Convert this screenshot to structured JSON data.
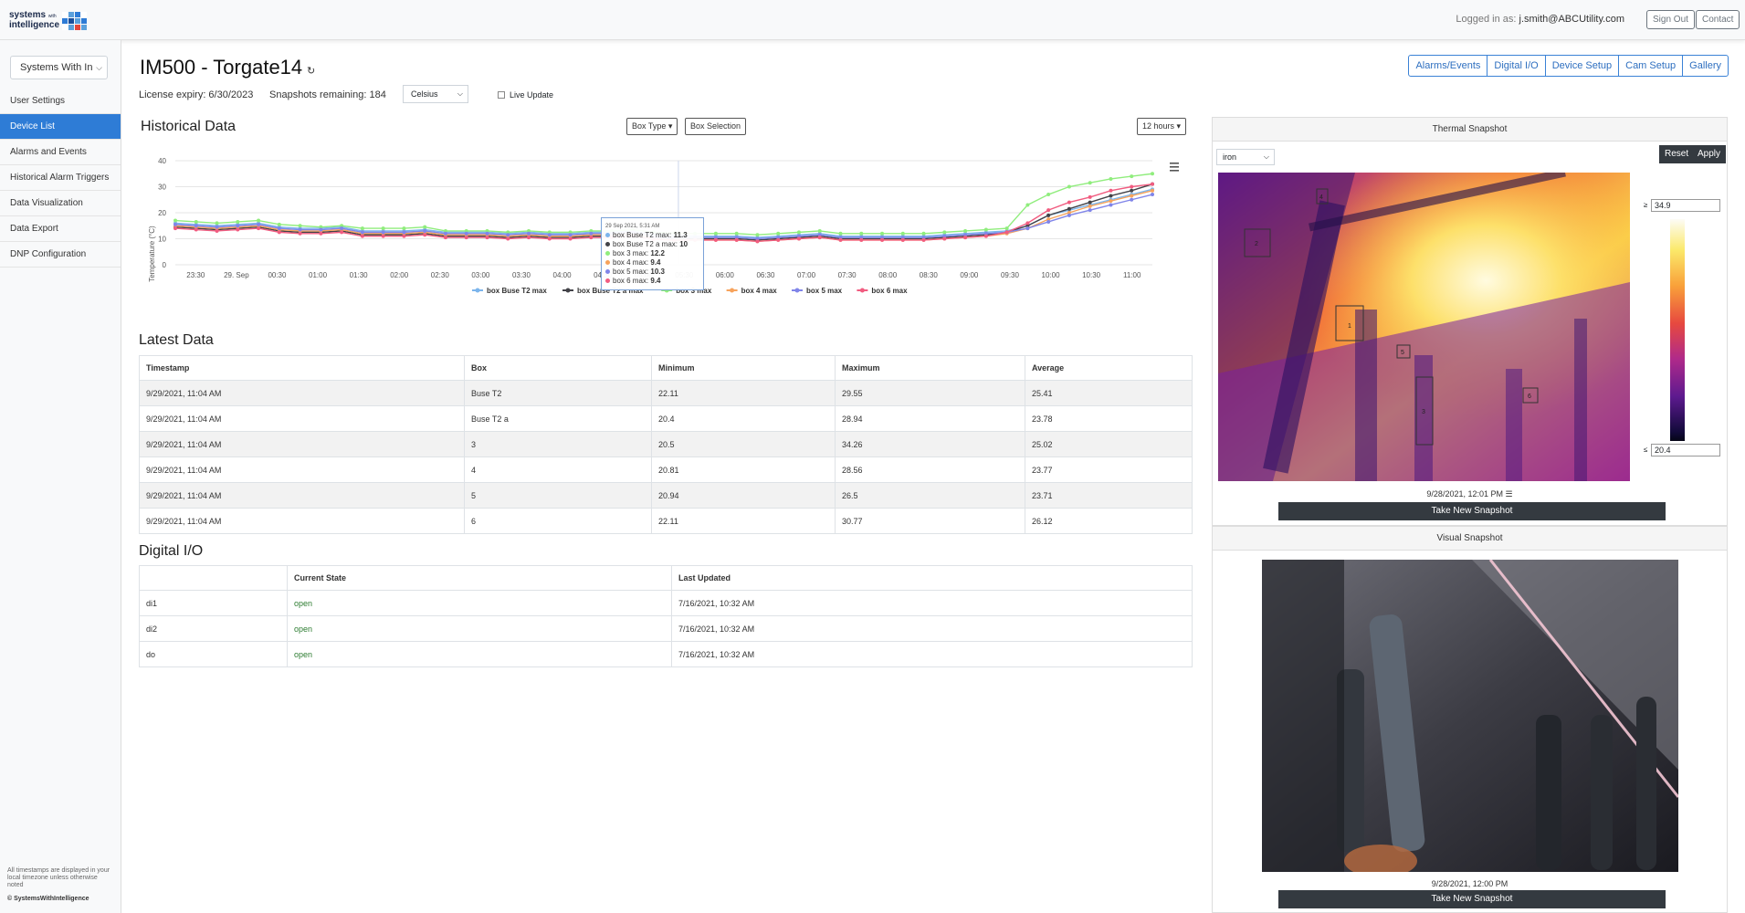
{
  "header": {
    "logo_line1": "systems",
    "logo_small": "with",
    "logo_line2": "intelligence",
    "logged_in_label": "Logged in as:",
    "user": "j.smith@ABCUtility.com",
    "sign_out": "Sign Out",
    "contact": "Contact"
  },
  "sidebar": {
    "selector_value": "Systems With In",
    "items": [
      {
        "label": "User Settings"
      },
      {
        "label": "Device List"
      },
      {
        "label": "Alarms and Events"
      },
      {
        "label": "Historical Alarm Triggers"
      },
      {
        "label": "Data Visualization"
      },
      {
        "label": "Data Export"
      },
      {
        "label": "DNP Configuration"
      }
    ],
    "footnote": "All timestamps are displayed in your local timezone unless otherwise noted",
    "copyright": "© SystemsWithIntelligence"
  },
  "page": {
    "title": "IM500 - Torgate14",
    "license": "License expiry: 6/30/2023",
    "snapshots": "Snapshots remaining: 184",
    "unit": "Celsius",
    "live_update": "Live Update",
    "tabs": [
      "Alarms/Events",
      "Digital I/O",
      "Device Setup",
      "Cam Setup",
      "Gallery"
    ]
  },
  "historical": {
    "title": "Historical Data",
    "box_type": "Box Type",
    "box_selection": "Box Selection",
    "range": "12 hours",
    "tooltip": {
      "time": "29 Sep 2021, 5:31 AM",
      "rows": [
        {
          "label": "box Buse T2 max:",
          "value": "11.3"
        },
        {
          "label": "box Buse T2 a max:",
          "value": "10"
        },
        {
          "label": "box 3 max:",
          "value": "12.2"
        },
        {
          "label": "box 4 max:",
          "value": "9.4"
        },
        {
          "label": "box 5 max:",
          "value": "10.3"
        },
        {
          "label": "box 6 max:",
          "value": "9.4"
        }
      ]
    }
  },
  "chart_data": {
    "type": "line",
    "ylabel": "Temperature (°C)",
    "ylim": [
      0,
      40
    ],
    "yticks": [
      0,
      10,
      20,
      30,
      40
    ],
    "xticks": [
      "23:30",
      "29. Sep",
      "00:30",
      "01:00",
      "01:30",
      "02:00",
      "02:30",
      "03:00",
      "03:30",
      "04:00",
      "04:30",
      "05:00",
      "05:30",
      "06:00",
      "06:30",
      "07:00",
      "07:30",
      "08:00",
      "08:30",
      "09:00",
      "09:30",
      "10:00",
      "10:30",
      "11:00"
    ],
    "x_hours": [
      0,
      0.5,
      1,
      1.5,
      2,
      2.5,
      3,
      3.5,
      4,
      4.5,
      5,
      5.5,
      6,
      6.5,
      7,
      7.5,
      8,
      8.5,
      9,
      9.5,
      10,
      10.5,
      11,
      11.5,
      12,
      12.5,
      13,
      13.5,
      14,
      14.5,
      15,
      15.5,
      16,
      16.5,
      17,
      17.5,
      18,
      18.5,
      19,
      19.5,
      20,
      20.5,
      21,
      21.5,
      22,
      22.5,
      23,
      23.5
    ],
    "grid": true,
    "legend": "bottom",
    "series": [
      {
        "name": "box Buse T2 max",
        "color": "#7cb5ec",
        "values": [
          16,
          15.5,
          15,
          15.5,
          16,
          14.5,
          14,
          14,
          14.5,
          13,
          13,
          13,
          13.5,
          12.5,
          12.5,
          12.5,
          12,
          12.5,
          12,
          12,
          12.5,
          12.5,
          13,
          11.5,
          11.3,
          11,
          11,
          11,
          10.5,
          11,
          11.5,
          12,
          11,
          11,
          11,
          11,
          11,
          11.5,
          12,
          12.5,
          13,
          15,
          19,
          21,
          23,
          25,
          27,
          29
        ]
      },
      {
        "name": "box Buse T2 a max",
        "color": "#434348",
        "values": [
          14.5,
          14,
          13.5,
          14,
          14.5,
          13,
          12.5,
          12.5,
          13,
          11.5,
          11.5,
          11.5,
          12,
          11,
          11,
          11,
          10.5,
          11,
          10.5,
          10.5,
          11,
          11,
          11.5,
          10.2,
          10,
          10,
          10,
          10,
          9.5,
          10,
          10.5,
          11,
          10,
          10,
          10,
          10,
          10,
          10.5,
          11,
          11.5,
          12.5,
          15,
          19,
          21.5,
          24,
          26.5,
          28.5,
          31
        ]
      },
      {
        "name": "box 3 max",
        "color": "#90ed7d",
        "values": [
          17,
          16.5,
          16,
          16.5,
          17,
          15.5,
          15,
          14.5,
          15,
          14,
          14,
          14,
          14.5,
          13,
          13,
          13,
          12.5,
          13,
          12.5,
          12.5,
          13,
          13,
          13.5,
          12.5,
          12.2,
          12,
          12,
          12,
          11.5,
          12,
          12.5,
          13,
          12,
          12,
          12,
          12,
          12,
          12.5,
          13,
          13.5,
          14,
          23,
          27,
          30,
          31.5,
          33,
          34,
          35
        ]
      },
      {
        "name": "box 4 max",
        "color": "#f7a35c",
        "values": [
          15,
          14.5,
          14,
          14.5,
          15,
          13.5,
          13,
          13,
          13.5,
          12,
          12,
          12,
          12.5,
          11.5,
          11.5,
          11.5,
          11,
          11.5,
          11,
          11,
          11.5,
          11.5,
          12,
          10,
          9.4,
          9.5,
          9.5,
          9.5,
          9,
          9.5,
          10,
          10.5,
          9.5,
          9.5,
          9.5,
          9.5,
          9.5,
          10,
          10.5,
          11,
          12,
          14,
          17.5,
          20,
          22.5,
          24.5,
          26.5,
          28.5
        ]
      },
      {
        "name": "box 5 max",
        "color": "#8085e9",
        "values": [
          15.5,
          15,
          14.5,
          15,
          15.5,
          14,
          13.5,
          13.5,
          14,
          12.5,
          12.5,
          12.5,
          13,
          12,
          12,
          12,
          11.5,
          12,
          11.5,
          11.5,
          12,
          12,
          12.5,
          10.8,
          10.3,
          10.5,
          10.5,
          10.5,
          10,
          10.5,
          11,
          11.5,
          10.5,
          10.5,
          10.5,
          10.5,
          10.5,
          11,
          11.5,
          12,
          12.5,
          14,
          16.5,
          19,
          21,
          23,
          25,
          27
        ]
      },
      {
        "name": "box 6 max",
        "color": "#f15c80",
        "values": [
          14,
          13.5,
          13,
          13.5,
          14,
          12.5,
          12,
          12,
          12.5,
          11,
          11,
          11,
          11.5,
          10.5,
          10.5,
          10.5,
          10,
          10.5,
          10,
          10,
          10.5,
          10.5,
          11,
          9.8,
          9.4,
          9.5,
          9.5,
          9.5,
          9,
          9.5,
          10,
          10.5,
          9.5,
          9.5,
          9.5,
          9.5,
          9.5,
          10,
          10.5,
          11,
          12.5,
          16,
          21,
          24,
          26,
          28.5,
          30,
          31
        ]
      }
    ]
  },
  "latest": {
    "title": "Latest Data",
    "columns": [
      "Timestamp",
      "Box",
      "Minimum",
      "Maximum",
      "Average"
    ],
    "rows": [
      [
        "9/29/2021, 11:04 AM",
        "Buse T2",
        "22.11",
        "29.55",
        "25.41"
      ],
      [
        "9/29/2021, 11:04 AM",
        "Buse T2 a",
        "20.4",
        "28.94",
        "23.78"
      ],
      [
        "9/29/2021, 11:04 AM",
        "3",
        "20.5",
        "34.26",
        "25.02"
      ],
      [
        "9/29/2021, 11:04 AM",
        "4",
        "20.81",
        "28.56",
        "23.77"
      ],
      [
        "9/29/2021, 11:04 AM",
        "5",
        "20.94",
        "26.5",
        "23.71"
      ],
      [
        "9/29/2021, 11:04 AM",
        "6",
        "22.11",
        "30.77",
        "26.12"
      ]
    ]
  },
  "digital": {
    "title": "Digital I/O",
    "columns": [
      "",
      "Current State",
      "Last Updated"
    ],
    "rows": [
      [
        "di1",
        "open",
        "7/16/2021, 10:32 AM"
      ],
      [
        "di2",
        "open",
        "7/16/2021, 10:32 AM"
      ],
      [
        "do",
        "open",
        "7/16/2021, 10:32 AM"
      ]
    ]
  },
  "thermal": {
    "title": "Thermal Snapshot",
    "palette": "iron",
    "reset": "Reset",
    "apply": "Apply",
    "max_value": "34.9",
    "min_value": "20.4",
    "boxes": [
      "1",
      "2",
      "3",
      "4",
      "5",
      "6"
    ],
    "timestamp": "9/28/2021, 12:01 PM",
    "take_snapshot": "Take New Snapshot"
  },
  "visual": {
    "title": "Visual Snapshot",
    "timestamp": "9/28/2021, 12:00 PM",
    "take_snapshot": "Take New Snapshot"
  }
}
